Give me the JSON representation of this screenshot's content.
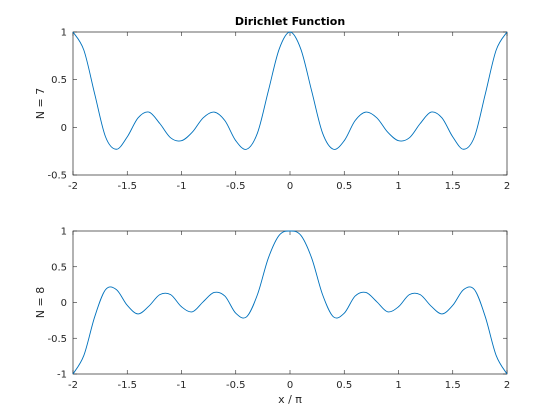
{
  "figure": {
    "background": "#ffffff",
    "line_color": "#0072bd",
    "axis_color": "#262626"
  },
  "chart_data": [
    {
      "type": "line",
      "title": "Dirichlet Function",
      "xlabel": "",
      "ylabel": "N = 7",
      "xlim": [
        -2,
        2
      ],
      "ylim": [
        -0.5,
        1
      ],
      "grid": false,
      "x_ticks": [
        -2,
        -1.5,
        -1,
        -0.5,
        0,
        0.5,
        1,
        1.5,
        2
      ],
      "x_tick_labels": [
        "-2",
        "-1.5",
        "-1",
        "-0.5",
        "0",
        "0.5",
        "1",
        "1.5",
        "2"
      ],
      "y_ticks": [
        -0.5,
        0,
        0.5,
        1
      ],
      "y_tick_labels": [
        "-0.5",
        "0",
        "0.5",
        "1"
      ],
      "series": [
        {
          "color": "#0072bd",
          "x": [
            -2,
            -1.9,
            -1.8,
            -1.7,
            -1.6,
            -1.5,
            -1.4,
            -1.3,
            -1.2,
            -1.1,
            -1,
            -0.9,
            -0.8,
            -0.7,
            -0.6,
            -0.5,
            -0.4,
            -0.3,
            -0.2,
            -0.1,
            0,
            0.1,
            0.2,
            0.3,
            0.4,
            0.5,
            0.6,
            0.7,
            0.8,
            0.9,
            1,
            1.1,
            1.2,
            1.3,
            1.4,
            1.5,
            1.6,
            1.7,
            1.8,
            1.9,
            2
          ],
          "y": [
            1,
            0.81,
            0.35,
            -0.1,
            -0.23,
            -0.1,
            0.1,
            0.16,
            0.04,
            -0.11,
            -0.14,
            -0.05,
            0.1,
            0.16,
            0.07,
            -0.14,
            -0.23,
            -0.06,
            0.38,
            0.82,
            1,
            0.82,
            0.38,
            -0.06,
            -0.23,
            -0.14,
            0.07,
            0.16,
            0.1,
            -0.05,
            -0.14,
            -0.11,
            0.04,
            0.16,
            0.1,
            -0.1,
            -0.23,
            -0.1,
            0.35,
            0.81,
            1
          ]
        }
      ]
    },
    {
      "type": "line",
      "title": "",
      "xlabel": "x / π",
      "ylabel": "N = 8",
      "xlim": [
        -2,
        2
      ],
      "ylim": [
        -1,
        1
      ],
      "grid": false,
      "x_ticks": [
        -2,
        -1.5,
        -1,
        -0.5,
        0,
        0.5,
        1,
        1.5,
        2
      ],
      "x_tick_labels": [
        "-2",
        "-1.5",
        "-1",
        "-0.5",
        "0",
        "0.5",
        "1",
        "1.5",
        "2"
      ],
      "y_ticks": [
        -1,
        -0.5,
        0,
        0.5,
        1
      ],
      "y_tick_labels": [
        "-1",
        "-0.5",
        "0",
        "0.5",
        "1"
      ],
      "series": [
        {
          "color": "#0072bd",
          "x": [
            -2,
            -1.9,
            -1.8,
            -1.7,
            -1.6,
            -1.5,
            -1.4,
            -1.3,
            -1.2,
            -1.1,
            -1,
            -0.9,
            -0.8,
            -0.7,
            -0.6,
            -0.5,
            -0.4,
            -0.3,
            -0.2,
            -0.1,
            0,
            0.1,
            0.2,
            0.3,
            0.4,
            0.5,
            0.6,
            0.7,
            0.8,
            0.9,
            1,
            1.1,
            1.2,
            1.3,
            1.4,
            1.5,
            1.6,
            1.7,
            1.8,
            1.9,
            2
          ],
          "y": [
            -1,
            -0.74,
            -0.2,
            0.18,
            0.18,
            -0.04,
            -0.16,
            -0.05,
            0.11,
            0.11,
            -0.06,
            -0.13,
            0.01,
            0.14,
            0.09,
            -0.15,
            -0.2,
            0.11,
            0.62,
            0.94,
            1,
            0.94,
            0.62,
            0.11,
            -0.2,
            -0.15,
            0.09,
            0.14,
            0.01,
            -0.13,
            -0.06,
            0.11,
            0.11,
            -0.05,
            -0.16,
            -0.04,
            0.18,
            0.18,
            -0.2,
            -0.74,
            -1
          ]
        }
      ]
    }
  ]
}
